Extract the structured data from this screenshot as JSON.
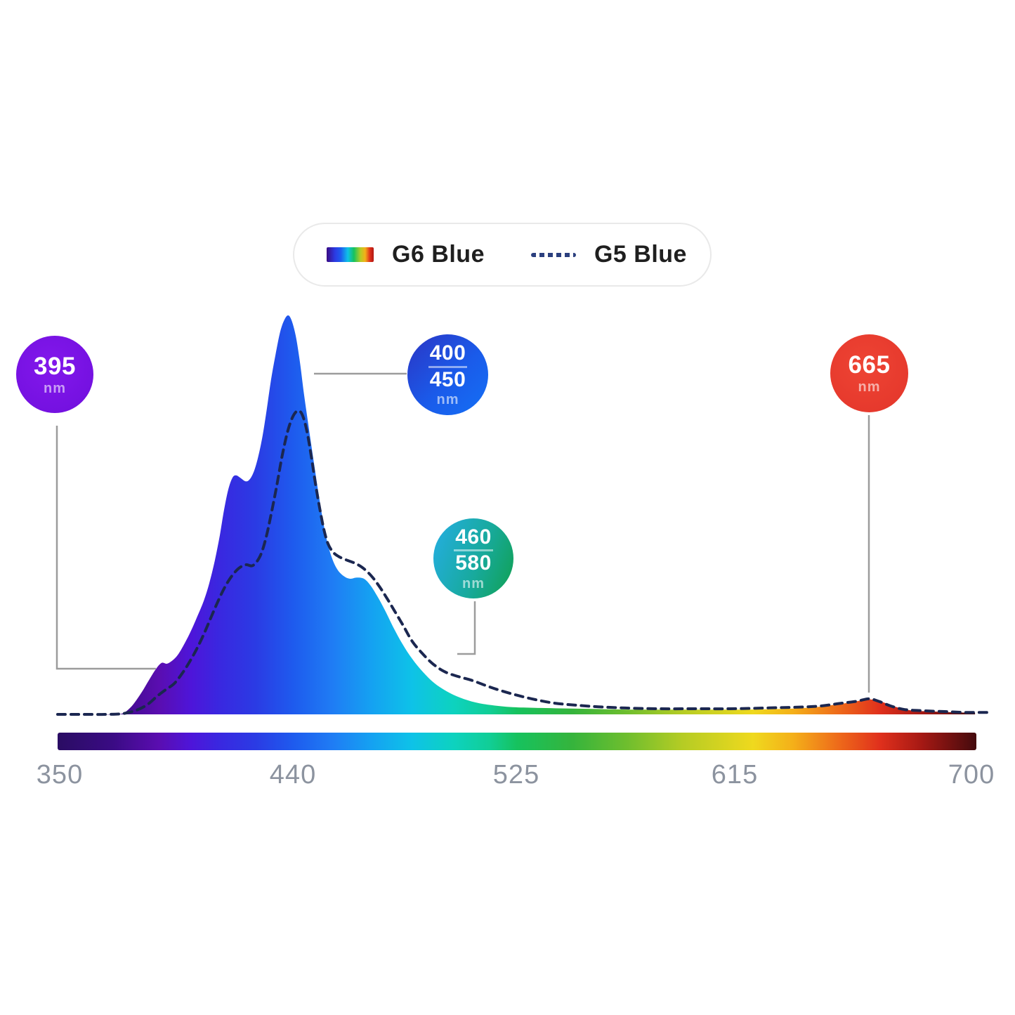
{
  "legend": {
    "items": [
      {
        "label": "G6 Blue",
        "swatch": "spectrum-gradient-bar"
      },
      {
        "label": "G5 Blue",
        "swatch": "dashed-navy-line"
      }
    ]
  },
  "callouts": [
    {
      "lines": [
        "395"
      ],
      "unit": "nm",
      "color": "#7a12e3",
      "points_to_nm": 395
    },
    {
      "lines": [
        "400",
        "450"
      ],
      "unit": "nm",
      "color_start": "#2b35c4",
      "color_end": "#1470f5",
      "points_to_nm": "400-450"
    },
    {
      "lines": [
        "460",
        "580"
      ],
      "unit": "nm",
      "color_start": "#25aee4",
      "color_end": "#10a050",
      "points_to_nm": "460-580"
    },
    {
      "lines": [
        "665"
      ],
      "unit": "nm",
      "color": "#e73a2d",
      "points_to_nm": 665
    }
  ],
  "axis": {
    "ticks": [
      "350",
      "440",
      "525",
      "615",
      "700"
    ]
  },
  "colors": {
    "g5_dashed_line": "#1b2750",
    "legend_dash_swatch": "#2b3f7e",
    "tick_label": "#8c939f",
    "leader_line": "#9c9c9c",
    "legend_border": "#e9e9e9",
    "legend_text": "#1f1f1f"
  },
  "chart_data": {
    "type": "area",
    "title": "",
    "xlabel": "",
    "ylabel": "",
    "x_unit": "nm",
    "x_range": [
      350,
      700
    ],
    "x_ticks": [
      350,
      440,
      525,
      615,
      700
    ],
    "y_range": [
      0,
      1
    ],
    "grid": false,
    "legend_position": "top",
    "annotations": [
      {
        "text": "395 nm",
        "x": 395
      },
      {
        "text": "400/450 nm",
        "x": 425
      },
      {
        "text": "460/580 nm",
        "x": 520
      },
      {
        "text": "665 nm",
        "x": 665
      }
    ],
    "series": [
      {
        "name": "G6 Blue",
        "style": "filled-area-spectrum-gradient",
        "points": [
          [
            350,
            0
          ],
          [
            366,
            0
          ],
          [
            373.5,
            0
          ],
          [
            377.6,
            0.016
          ],
          [
            381.6,
            0.051
          ],
          [
            384.8,
            0.086
          ],
          [
            387.5,
            0.114
          ],
          [
            389.6,
            0.129
          ],
          [
            391.7,
            0.127
          ],
          [
            393.9,
            0.136
          ],
          [
            396,
            0.151
          ],
          [
            398.4,
            0.178
          ],
          [
            400.8,
            0.209
          ],
          [
            403.2,
            0.245
          ],
          [
            405.7,
            0.285
          ],
          [
            407.8,
            0.329
          ],
          [
            409.9,
            0.386
          ],
          [
            411.8,
            0.449
          ],
          [
            413.4,
            0.512
          ],
          [
            415,
            0.563
          ],
          [
            416.6,
            0.593
          ],
          [
            418,
            0.599
          ],
          [
            419.6,
            0.593
          ],
          [
            421.7,
            0.584
          ],
          [
            423.3,
            0.59
          ],
          [
            424.9,
            0.611
          ],
          [
            426.5,
            0.648
          ],
          [
            428.1,
            0.699
          ],
          [
            429.7,
            0.766
          ],
          [
            431.3,
            0.838
          ],
          [
            433,
            0.901
          ],
          [
            434.8,
            0.959
          ],
          [
            436.4,
            0.989
          ],
          [
            437.8,
            1
          ],
          [
            439.1,
            0.988
          ],
          [
            440.7,
            0.949
          ],
          [
            442.3,
            0.884
          ],
          [
            443.9,
            0.801
          ],
          [
            445.8,
            0.713
          ],
          [
            447.7,
            0.628
          ],
          [
            449.3,
            0.558
          ],
          [
            450.9,
            0.493
          ],
          [
            452.5,
            0.438
          ],
          [
            454.4,
            0.394
          ],
          [
            456.5,
            0.364
          ],
          [
            458.9,
            0.347
          ],
          [
            461.3,
            0.34
          ],
          [
            464,
            0.343
          ],
          [
            466.7,
            0.34
          ],
          [
            469.1,
            0.324
          ],
          [
            471.8,
            0.296
          ],
          [
            474.7,
            0.261
          ],
          [
            477.9,
            0.218
          ],
          [
            481.4,
            0.176
          ],
          [
            485.1,
            0.139
          ],
          [
            489.2,
            0.106
          ],
          [
            493.4,
            0.079
          ],
          [
            498.2,
            0.058
          ],
          [
            503.3,
            0.042
          ],
          [
            509.2,
            0.03
          ],
          [
            515.4,
            0.023
          ],
          [
            523.4,
            0.018
          ],
          [
            534.1,
            0.016
          ],
          [
            550.2,
            0.014
          ],
          [
            568.9,
            0.012
          ],
          [
            590.3,
            0.012
          ],
          [
            611.7,
            0.012
          ],
          [
            627.8,
            0.014
          ],
          [
            638.5,
            0.018
          ],
          [
            647.1,
            0.025
          ],
          [
            653.7,
            0.032
          ],
          [
            657.8,
            0.037
          ],
          [
            660.4,
            0.037
          ],
          [
            663.7,
            0.032
          ],
          [
            667.4,
            0.023
          ],
          [
            671.7,
            0.014
          ],
          [
            676.5,
            0.009
          ],
          [
            684,
            0.007
          ],
          [
            692,
            0.005
          ],
          [
            699.5,
            0.004
          ]
        ]
      },
      {
        "name": "G5 Blue",
        "style": "dashed-line",
        "points": [
          [
            350,
            0
          ],
          [
            360,
            0
          ],
          [
            368,
            0
          ],
          [
            374.9,
            0.002
          ],
          [
            380.2,
            0.011
          ],
          [
            384.3,
            0.025
          ],
          [
            388,
            0.046
          ],
          [
            391.2,
            0.062
          ],
          [
            394.4,
            0.077
          ],
          [
            397.6,
            0.104
          ],
          [
            400.3,
            0.132
          ],
          [
            403,
            0.164
          ],
          [
            405.7,
            0.201
          ],
          [
            408.3,
            0.241
          ],
          [
            411,
            0.282
          ],
          [
            413.7,
            0.319
          ],
          [
            416.4,
            0.347
          ],
          [
            419,
            0.366
          ],
          [
            421.7,
            0.375
          ],
          [
            424.4,
            0.373
          ],
          [
            427.1,
            0.396
          ],
          [
            429.2,
            0.438
          ],
          [
            431.3,
            0.5
          ],
          [
            433.5,
            0.574
          ],
          [
            435.6,
            0.65
          ],
          [
            437.8,
            0.713
          ],
          [
            439.9,
            0.75
          ],
          [
            441.8,
            0.761
          ],
          [
            443.4,
            0.748
          ],
          [
            445,
            0.709
          ],
          [
            446.6,
            0.648
          ],
          [
            448.2,
            0.579
          ],
          [
            449.8,
            0.518
          ],
          [
            451.4,
            0.465
          ],
          [
            453,
            0.428
          ],
          [
            454.9,
            0.407
          ],
          [
            457,
            0.396
          ],
          [
            460,
            0.387
          ],
          [
            463.2,
            0.379
          ],
          [
            466.1,
            0.368
          ],
          [
            469.1,
            0.35
          ],
          [
            472,
            0.326
          ],
          [
            475,
            0.296
          ],
          [
            478.2,
            0.261
          ],
          [
            481.7,
            0.222
          ],
          [
            485.1,
            0.183
          ],
          [
            488.9,
            0.153
          ],
          [
            492.9,
            0.127
          ],
          [
            497.4,
            0.107
          ],
          [
            502.5,
            0.095
          ],
          [
            507.9,
            0.085
          ],
          [
            513.2,
            0.072
          ],
          [
            518.6,
            0.06
          ],
          [
            525,
            0.048
          ],
          [
            532,
            0.037
          ],
          [
            539.4,
            0.028
          ],
          [
            547.5,
            0.023
          ],
          [
            556,
            0.019
          ],
          [
            566.2,
            0.016
          ],
          [
            579.6,
            0.014
          ],
          [
            593,
            0.014
          ],
          [
            606.3,
            0.014
          ],
          [
            619.7,
            0.016
          ],
          [
            631.8,
            0.018
          ],
          [
            640.6,
            0.021
          ],
          [
            648.6,
            0.028
          ],
          [
            654.5,
            0.033
          ],
          [
            659.1,
            0.039
          ],
          [
            663.1,
            0.032
          ],
          [
            667.4,
            0.021
          ],
          [
            672.7,
            0.012
          ],
          [
            680,
            0.009
          ],
          [
            688,
            0.007
          ],
          [
            696,
            0.005
          ],
          [
            704,
            0.005
          ]
        ]
      }
    ],
    "spectrum_stops": [
      [
        0,
        "#2a0c63"
      ],
      [
        0.06,
        "#3a0b84"
      ],
      [
        0.11,
        "#5a0db0"
      ],
      [
        0.145,
        "#4e15d9"
      ],
      [
        0.175,
        "#3a27e0"
      ],
      [
        0.215,
        "#2b3be4"
      ],
      [
        0.257,
        "#1e5bee"
      ],
      [
        0.3,
        "#1f7df4"
      ],
      [
        0.34,
        "#15a0f2"
      ],
      [
        0.385,
        "#0ec2e8"
      ],
      [
        0.43,
        "#0dd2c0"
      ],
      [
        0.47,
        "#11ce96"
      ],
      [
        0.5,
        "#16c25e"
      ],
      [
        0.56,
        "#35b43c"
      ],
      [
        0.62,
        "#6fbe2e"
      ],
      [
        0.68,
        "#b5cc24"
      ],
      [
        0.757,
        "#efd91e"
      ],
      [
        0.8,
        "#f4b019"
      ],
      [
        0.85,
        "#ee6a1a"
      ],
      [
        0.895,
        "#e0301c"
      ],
      [
        0.94,
        "#a61914"
      ],
      [
        1,
        "#440a0d"
      ]
    ]
  }
}
